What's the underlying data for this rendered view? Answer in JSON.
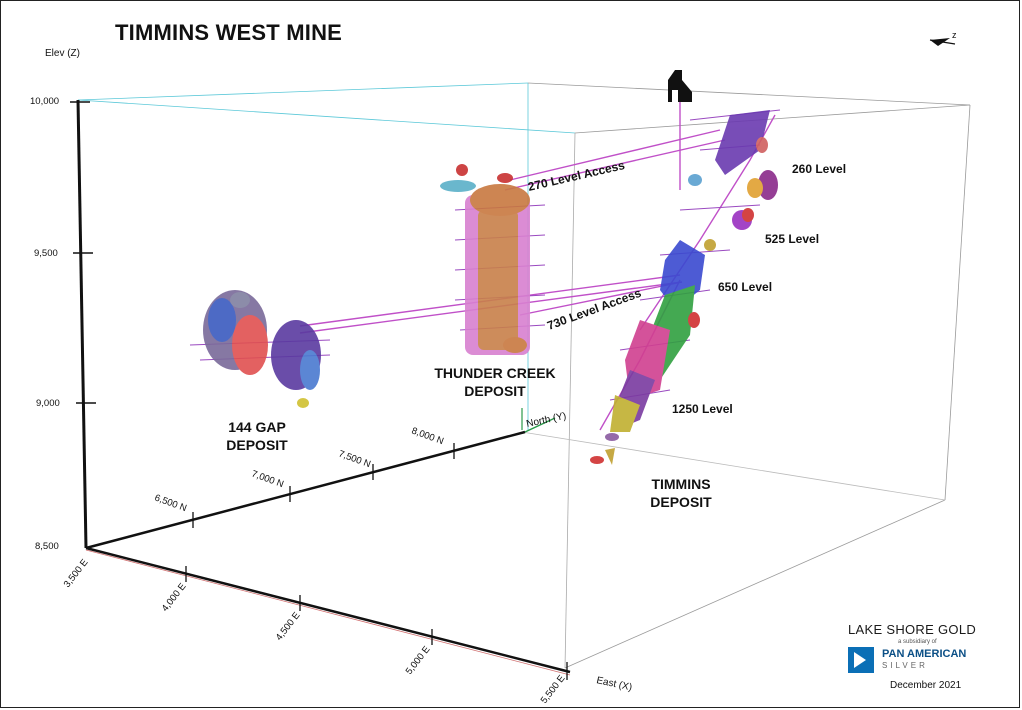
{
  "title": "TIMMINS WEST MINE",
  "axes": {
    "elev_label": "Elev (Z)",
    "elev_ticks": [
      "10,000",
      "9,500",
      "9,000",
      "8,500"
    ],
    "north_label": "North (Y)",
    "north_ticks": [
      "6,500 N",
      "7,000 N",
      "7,500 N",
      "8,000 N"
    ],
    "east_label": "East (X)",
    "east_ticks": [
      "3,500 E",
      "4,000 E",
      "4,500 E",
      "5,000 E",
      "5,500 E"
    ]
  },
  "levels": {
    "l260": "260 Level",
    "l525": "525 Level",
    "l650": "650 Level",
    "l1250": "1250 Level",
    "access270": "270 Level Access",
    "access730": "730 Level Access"
  },
  "deposits": {
    "gap": [
      "144 GAP",
      "DEPOSIT"
    ],
    "thunder": [
      "THUNDER CREEK",
      "DEPOSIT"
    ],
    "timmins": [
      "TIMMINS",
      "DEPOSIT"
    ]
  },
  "logo": {
    "company": "LAKE SHORE GOLD",
    "subsidiary": "a subsidiary of",
    "parent_line1": "PAN AMERICAN",
    "parent_line2": "SILVER"
  },
  "date": "December 2021",
  "colors": {
    "ramp": "#c050c8",
    "axis": "#111111",
    "box": "#9a9a9a",
    "box_top": "#5bc8d8"
  },
  "icons": [
    "north-arrow-icon",
    "headframe-icon"
  ]
}
